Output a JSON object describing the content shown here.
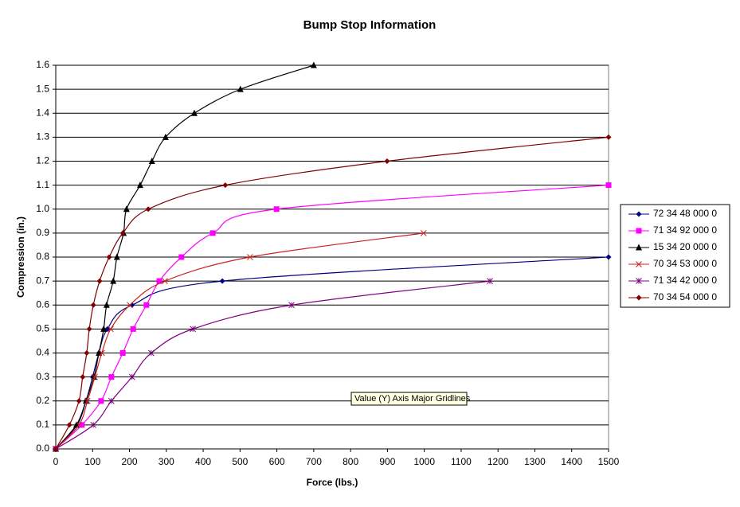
{
  "chart_data": {
    "type": "line",
    "title": "Bump Stop Information",
    "xlabel": "Force (lbs.)",
    "ylabel": "Compression (in.)",
    "xlim": [
      0,
      1500
    ],
    "xticks": [
      0,
      100,
      200,
      300,
      400,
      500,
      600,
      700,
      800,
      900,
      1000,
      1100,
      1200,
      1300,
      1400,
      1500
    ],
    "ylim": [
      0,
      1.6
    ],
    "yticks": [
      {
        "value": 0,
        "label": "0.0"
      },
      0.1,
      0.2,
      0.3,
      0.4,
      0.5,
      0.6,
      0.7,
      0.8,
      0.9,
      {
        "value": 1,
        "label": "1.0"
      },
      1.1,
      1.2,
      1.3,
      1.4,
      1.5,
      1.6
    ],
    "grid": true,
    "smooth": true,
    "legend": "right",
    "tooltip": "Value (Y) Axis Major Gridlines",
    "series": [
      {
        "name": "72 34 48 000 0",
        "color": "#000080",
        "marker": "diamond",
        "x": [
          0,
          58,
          82,
          100,
          117,
          140,
          207,
          452,
          1500
        ],
        "values": [
          0,
          0.1,
          0.2,
          0.3,
          0.4,
          0.5,
          0.6,
          0.7,
          0.8
        ]
      },
      {
        "name": "71 34 92 000 0",
        "color": "#ff00ff",
        "marker": "square",
        "x": [
          0,
          71,
          123,
          151,
          182,
          210,
          246,
          281,
          341,
          426,
          599,
          1500
        ],
        "values": [
          0,
          0.1,
          0.2,
          0.3,
          0.4,
          0.5,
          0.6,
          0.7,
          0.8,
          0.9,
          1.0,
          1.1
        ]
      },
      {
        "name": "15 34 20 000 0",
        "color": "#000000",
        "marker": "triangle",
        "x": [
          0,
          56,
          82,
          104,
          117,
          130,
          138,
          156,
          166,
          184,
          192,
          229,
          261,
          298,
          376,
          501,
          700
        ],
        "values": [
          0,
          0.1,
          0.2,
          0.3,
          0.4,
          0.5,
          0.6,
          0.7,
          0.8,
          0.9,
          1.0,
          1.1,
          1.2,
          1.3,
          1.4,
          1.5,
          1.6
        ]
      },
      {
        "name": "70 34 53 000 0",
        "color": "#cc2020",
        "marker": "x",
        "x": [
          0,
          63,
          86,
          106,
          125,
          149,
          201,
          296,
          527,
          998
        ],
        "values": [
          0,
          0.1,
          0.2,
          0.3,
          0.4,
          0.5,
          0.6,
          0.7,
          0.8,
          0.9
        ]
      },
      {
        "name": "71 34 42 000 0",
        "color": "#800080",
        "marker": "star",
        "x": [
          0,
          102,
          151,
          207,
          259,
          372,
          640,
          1178
        ],
        "values": [
          0,
          0.1,
          0.2,
          0.3,
          0.4,
          0.5,
          0.6,
          0.7
        ]
      },
      {
        "name": "70 34 54 000 0",
        "color": "#800000",
        "marker": "diamond",
        "x": [
          0,
          37,
          63,
          73,
          84,
          91,
          102,
          119,
          145,
          182,
          251,
          460,
          899,
          1500
        ],
        "values": [
          0,
          0.1,
          0.2,
          0.3,
          0.4,
          0.5,
          0.6,
          0.7,
          0.8,
          0.9,
          1.0,
          1.1,
          1.2,
          1.3
        ]
      }
    ]
  }
}
